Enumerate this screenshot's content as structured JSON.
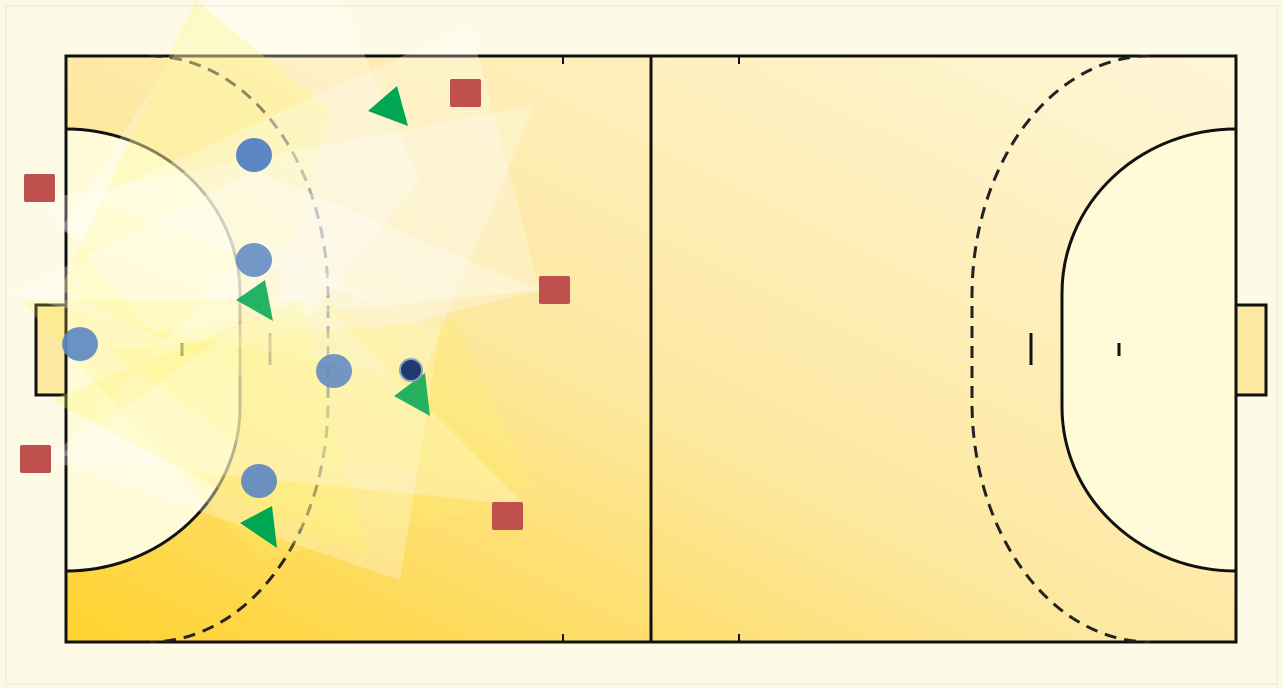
{
  "diagram": {
    "kind": "handball-court-tactics",
    "colors": {
      "frame_background": "#fbf8e3",
      "court_warm": "#ffd43a",
      "court_light": "#fff7d6",
      "goal_area": "#fffbd8",
      "lines": "#111111",
      "attacker_square": "#c0504d",
      "defender_circle": "#5b86c3",
      "arrow_triangle": "#00a651",
      "ball": "#1f3a6e",
      "overlay_white": "#ffffff",
      "overlay_yellow": "#fff36a"
    },
    "legend": []
  }
}
